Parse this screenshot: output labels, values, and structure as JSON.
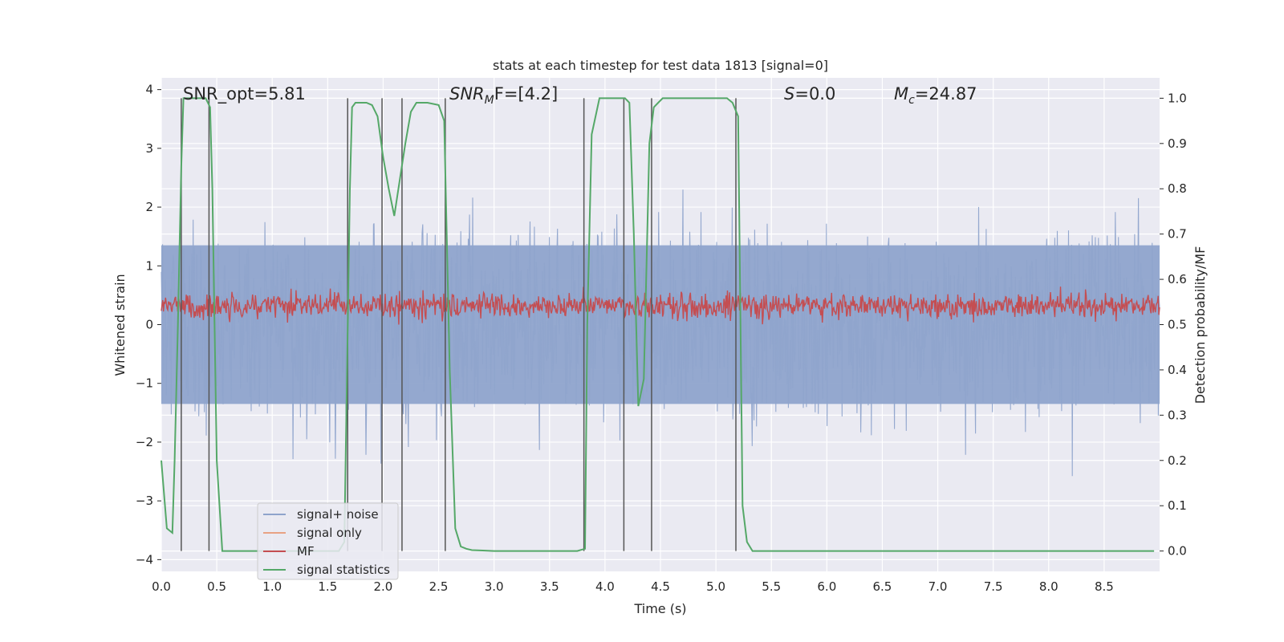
{
  "chart_data": {
    "type": "line",
    "title": "stats at each timestep for test data 1813 [signal=0]",
    "xlabel": "Time (s)",
    "ylabel_left": "Whitened strain",
    "ylabel_right": "Detection probability/MF",
    "xlim": [
      0.0,
      9.0
    ],
    "ylim_left": [
      -4.2,
      4.2
    ],
    "ylim_right": [
      -0.045,
      1.045
    ],
    "x_ticks": [
      "0.0",
      "0.5",
      "1.0",
      "1.5",
      "2.0",
      "2.5",
      "3.0",
      "3.5",
      "4.0",
      "4.5",
      "5.0",
      "5.5",
      "6.0",
      "6.5",
      "7.0",
      "7.5",
      "8.0",
      "8.5"
    ],
    "y_ticks_left": [
      "4",
      "3",
      "2",
      "1",
      "0",
      "−1",
      "−2",
      "−3",
      "−4"
    ],
    "y_ticks_right": [
      "1.0",
      "0.9",
      "0.8",
      "0.7",
      "0.6",
      "0.5",
      "0.4",
      "0.3",
      "0.2",
      "0.1",
      "0.0"
    ],
    "grid": true,
    "legend_position": "lower-left",
    "annotations": {
      "snr_opt": "SNR_opt=5.81",
      "snr_mf_var": "SNR",
      "snr_mf_sub": "M",
      "snr_mf_rest": "F=[4.2]",
      "s_var": "S",
      "s_rest": "=0.0",
      "mc_var": "M",
      "mc_sub": "c",
      "mc_rest": "=24.87"
    },
    "series": [
      {
        "name": "signal+ noise",
        "color": "#8fa4cc",
        "style": "noise band, approx. range −4 to 3.9"
      },
      {
        "name": "signal only",
        "color": "#e8a284",
        "values": []
      },
      {
        "name": "MF",
        "color": "#c44e52",
        "style": "noise band, approx. range 0 to 1.0"
      },
      {
        "name": "signal statistics",
        "color": "#55a868",
        "axis": "right",
        "x": [
          0.0,
          0.05,
          0.1,
          0.12,
          0.15,
          0.18,
          0.2,
          0.24,
          0.26,
          0.3,
          0.35,
          0.4,
          0.44,
          0.46,
          0.5,
          0.55,
          0.6,
          0.7,
          0.8,
          0.9,
          1.0,
          1.2,
          1.4,
          1.6,
          1.65,
          1.7,
          1.72,
          1.75,
          1.8,
          1.85,
          1.9,
          1.95,
          2.0,
          2.05,
          2.1,
          2.15,
          2.2,
          2.25,
          2.3,
          2.4,
          2.5,
          2.55,
          2.6,
          2.65,
          2.7,
          2.75,
          2.8,
          2.9,
          3.0,
          3.2,
          3.4,
          3.6,
          3.75,
          3.82,
          3.84,
          3.88,
          3.95,
          4.0,
          4.1,
          4.18,
          4.22,
          4.26,
          4.3,
          4.35,
          4.4,
          4.44,
          4.48,
          4.52,
          4.6,
          4.8,
          5.0,
          5.1,
          5.15,
          5.2,
          5.24,
          5.28,
          5.33,
          5.4,
          5.6,
          6.0,
          6.5,
          7.0,
          7.5,
          8.0,
          8.5,
          8.95
        ],
        "y": [
          0.2,
          0.05,
          0.04,
          0.2,
          0.5,
          0.85,
          1.0,
          1.0,
          1.0,
          1.0,
          1.0,
          1.0,
          0.98,
          0.8,
          0.2,
          0.0,
          0.0,
          0.0,
          0.0,
          0.0,
          0.0,
          0.0,
          0.0,
          0.0,
          0.02,
          0.8,
          0.98,
          0.99,
          0.99,
          0.99,
          0.985,
          0.96,
          0.87,
          0.8,
          0.74,
          0.82,
          0.9,
          0.97,
          0.99,
          0.99,
          0.985,
          0.95,
          0.4,
          0.05,
          0.01,
          0.005,
          0.002,
          0.001,
          0.0,
          0.0,
          0.0,
          0.0,
          0.0,
          0.005,
          0.5,
          0.92,
          1.0,
          1.0,
          1.0,
          1.0,
          0.99,
          0.7,
          0.32,
          0.38,
          0.9,
          0.98,
          0.99,
          1.0,
          1.0,
          1.0,
          1.0,
          1.0,
          0.99,
          0.96,
          0.1,
          0.02,
          0.0,
          0.0,
          0.0,
          0.0,
          0.0,
          0.0,
          0.0,
          0.0,
          0.0,
          0.0
        ]
      }
    ],
    "vertical_markers": [
      0.18,
      0.43,
      1.68,
      1.99,
      2.17,
      2.56,
      3.81,
      4.17,
      4.42,
      5.18
    ]
  }
}
